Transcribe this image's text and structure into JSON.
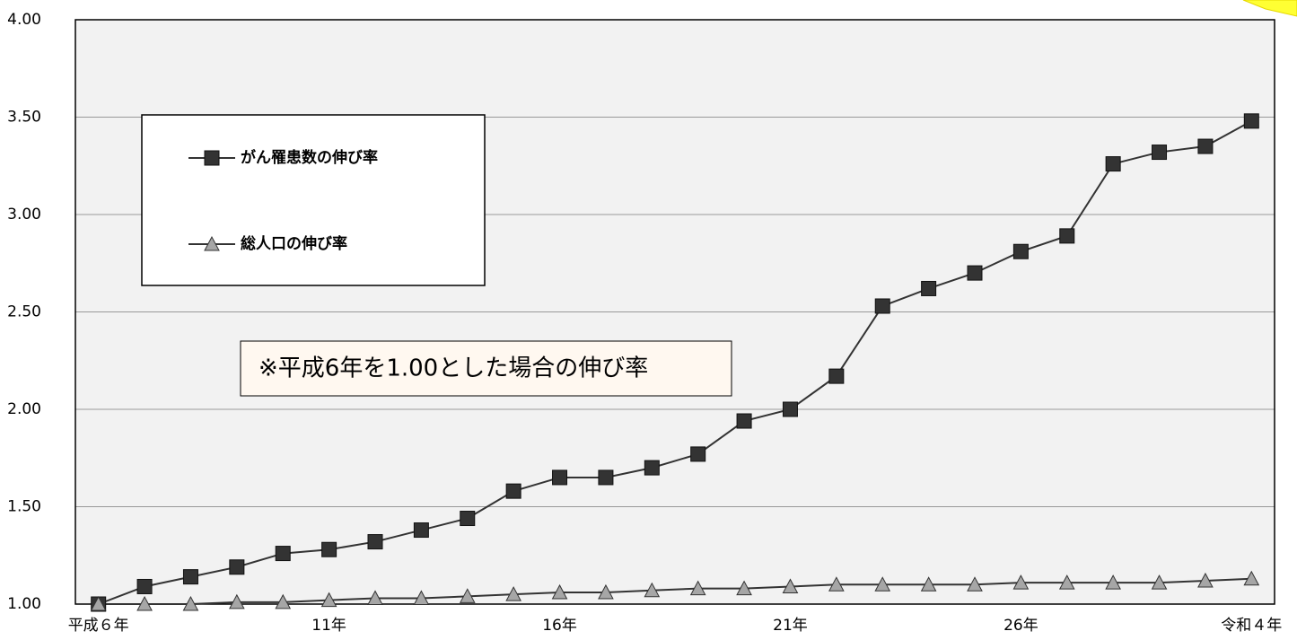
{
  "chart_data": {
    "type": "line",
    "annotation": "※平成6年を1.00とした場合の伸び率",
    "categories": [
      "平成６年",
      null,
      null,
      null,
      null,
      "11年",
      null,
      null,
      null,
      null,
      "16年",
      null,
      null,
      null,
      null,
      "21年",
      null,
      null,
      null,
      null,
      "26年",
      null,
      null,
      null,
      null,
      "令和４年"
    ],
    "series": [
      {
        "name": "がん罹患数の伸び率",
        "color": "#333333",
        "marker": "square",
        "values": [
          1.0,
          1.09,
          1.14,
          1.19,
          1.26,
          1.28,
          1.32,
          1.38,
          1.44,
          1.58,
          1.65,
          1.65,
          1.7,
          1.77,
          1.94,
          2.0,
          2.17,
          2.53,
          2.62,
          2.7,
          2.81,
          2.89,
          3.26,
          3.32,
          3.35,
          3.48
        ]
      },
      {
        "name": "総人口の伸び率",
        "color": "#a6a6a6",
        "marker": "triangle",
        "values": [
          1.0,
          1.0,
          1.0,
          1.01,
          1.01,
          1.02,
          1.03,
          1.03,
          1.04,
          1.05,
          1.06,
          1.06,
          1.07,
          1.08,
          1.08,
          1.09,
          1.1,
          1.1,
          1.1,
          1.1,
          1.11,
          1.11,
          1.11,
          1.11,
          1.12,
          1.13
        ]
      }
    ],
    "ylim": [
      1,
      4
    ],
    "yticks": [
      {
        "value": 1,
        "label": "1.00"
      },
      {
        "value": 1.5,
        "label": "1.50"
      },
      {
        "value": 2,
        "label": "2.00"
      },
      {
        "value": 2.5,
        "label": "2.50"
      },
      {
        "value": 3,
        "label": "3.00"
      },
      {
        "value": 3.5,
        "label": "3.50"
      },
      {
        "value": 4,
        "label": "4.00"
      }
    ],
    "grid": true
  }
}
